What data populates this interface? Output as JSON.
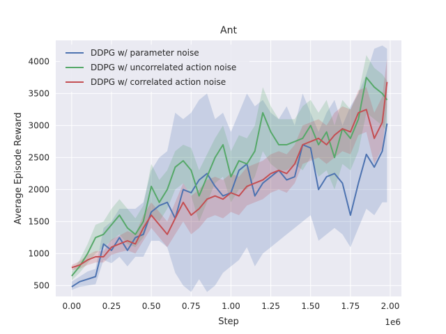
{
  "chart_data": {
    "type": "line",
    "title": "Ant",
    "xlabel": "Step",
    "ylabel": "Average Episode Reward",
    "x_offset_label": "1e6",
    "xlim": [
      -0.1,
      2.07
    ],
    "ylim": [
      330,
      4330
    ],
    "xticks": [
      0.0,
      0.25,
      0.5,
      0.75,
      1.0,
      1.25,
      1.5,
      1.75,
      2.0
    ],
    "xtick_labels": [
      "0.00",
      "0.25",
      "0.50",
      "0.75",
      "1.00",
      "1.25",
      "1.50",
      "1.75",
      "2.00"
    ],
    "yticks": [
      500,
      1000,
      1500,
      2000,
      2500,
      3000,
      3500,
      4000
    ],
    "ytick_labels": [
      "500",
      "1000",
      "1500",
      "2000",
      "2500",
      "3000",
      "3500",
      "4000"
    ],
    "grid": true,
    "legend_position": "top-left",
    "background": "#eaeaf2",
    "series": [
      {
        "name": "DDPG w/ parameter noise",
        "color": "#4c72b0",
        "x": [
          0.0,
          0.05,
          0.1,
          0.15,
          0.2,
          0.25,
          0.3,
          0.35,
          0.4,
          0.45,
          0.5,
          0.55,
          0.6,
          0.65,
          0.7,
          0.75,
          0.8,
          0.85,
          0.9,
          0.95,
          1.0,
          1.05,
          1.1,
          1.15,
          1.2,
          1.25,
          1.3,
          1.35,
          1.4,
          1.45,
          1.5,
          1.55,
          1.6,
          1.65,
          1.7,
          1.75,
          1.8,
          1.85,
          1.9,
          1.95,
          1.98
        ],
        "y": [
          480,
          560,
          600,
          640,
          1150,
          1050,
          1250,
          1050,
          1250,
          1300,
          1650,
          1750,
          1800,
          1550,
          2000,
          1950,
          2150,
          2250,
          2050,
          1900,
          1950,
          2300,
          2400,
          1900,
          2100,
          2200,
          2300,
          2150,
          2200,
          2700,
          2650,
          2000,
          2200,
          2250,
          2100,
          1600,
          2100,
          2550,
          2350,
          2600,
          3030
        ],
        "lower": [
          430,
          480,
          500,
          520,
          900,
          850,
          950,
          800,
          950,
          950,
          1200,
          1200,
          1100,
          700,
          500,
          400,
          600,
          400,
          500,
          700,
          800,
          900,
          1100,
          800,
          1000,
          1100,
          1200,
          1300,
          1400,
          1500,
          1600,
          1200,
          1300,
          1400,
          1300,
          1100,
          1400,
          1700,
          1600,
          1800,
          1800
        ],
        "upper": [
          560,
          640,
          720,
          760,
          1400,
          1500,
          1700,
          1700,
          1700,
          1800,
          2300,
          2500,
          2600,
          3200,
          3100,
          3200,
          3400,
          3500,
          3100,
          3200,
          2900,
          3200,
          3500,
          3300,
          3400,
          3200,
          3100,
          3300,
          3000,
          3500,
          3200,
          2900,
          3200,
          3400,
          3000,
          3300,
          3500,
          3800,
          4200,
          4250,
          4200
        ]
      },
      {
        "name": "DDPG w/ uncorrelated action noise",
        "color": "#55a868",
        "x": [
          0.0,
          0.05,
          0.1,
          0.15,
          0.2,
          0.25,
          0.3,
          0.35,
          0.4,
          0.45,
          0.5,
          0.55,
          0.6,
          0.65,
          0.7,
          0.75,
          0.8,
          0.85,
          0.9,
          0.95,
          1.0,
          1.05,
          1.1,
          1.15,
          1.2,
          1.25,
          1.3,
          1.35,
          1.4,
          1.45,
          1.5,
          1.55,
          1.6,
          1.65,
          1.7,
          1.75,
          1.8,
          1.85,
          1.9,
          1.95,
          1.98
        ],
        "y": [
          650,
          800,
          1000,
          1250,
          1300,
          1450,
          1600,
          1400,
          1300,
          1500,
          2050,
          1800,
          2000,
          2350,
          2450,
          2300,
          1900,
          2200,
          2500,
          2700,
          2200,
          2450,
          2400,
          2600,
          3200,
          2900,
          2700,
          2700,
          2750,
          2800,
          3000,
          2700,
          2900,
          2500,
          2950,
          2800,
          3100,
          3750,
          3600,
          3500,
          3400
        ],
        "lower": [
          580,
          700,
          850,
          1000,
          1100,
          1200,
          1300,
          1150,
          1100,
          1250,
          1600,
          1500,
          1700,
          2000,
          2100,
          1900,
          1500,
          1800,
          2100,
          2200,
          1800,
          2000,
          2000,
          2200,
          2600,
          2400,
          2300,
          2300,
          2400,
          2300,
          2500,
          2200,
          2300,
          2000,
          2400,
          2300,
          2600,
          3200,
          3100,
          3000,
          2900
        ],
        "upper": [
          720,
          900,
          1150,
          1450,
          1500,
          1700,
          1850,
          1700,
          1550,
          1750,
          2400,
          2150,
          2300,
          2600,
          2700,
          2650,
          2300,
          2550,
          2800,
          3000,
          2600,
          2850,
          2800,
          3000,
          3600,
          3300,
          3100,
          3100,
          3100,
          3300,
          3400,
          3200,
          3400,
          3000,
          3400,
          3250,
          3500,
          4100,
          3900,
          3800,
          3700
        ]
      },
      {
        "name": "DDPG w/ correlated action noise",
        "color": "#c44e52",
        "x": [
          0.0,
          0.05,
          0.1,
          0.15,
          0.2,
          0.25,
          0.3,
          0.35,
          0.4,
          0.45,
          0.5,
          0.55,
          0.6,
          0.65,
          0.7,
          0.75,
          0.8,
          0.85,
          0.9,
          0.95,
          1.0,
          1.05,
          1.1,
          1.15,
          1.2,
          1.25,
          1.3,
          1.35,
          1.4,
          1.45,
          1.5,
          1.55,
          1.6,
          1.65,
          1.7,
          1.75,
          1.8,
          1.85,
          1.9,
          1.95,
          1.98
        ],
        "y": [
          780,
          820,
          900,
          950,
          950,
          1100,
          1150,
          1200,
          1150,
          1400,
          1600,
          1450,
          1300,
          1550,
          1800,
          1600,
          1700,
          1850,
          1900,
          1850,
          1950,
          1900,
          2050,
          2100,
          2150,
          2250,
          2300,
          2250,
          2400,
          2700,
          2750,
          2800,
          2700,
          2850,
          2950,
          2900,
          3200,
          3250,
          2800,
          3050,
          3680
        ],
        "lower": [
          740,
          760,
          820,
          860,
          860,
          980,
          1020,
          1050,
          1000,
          1200,
          1400,
          1250,
          1100,
          1300,
          1500,
          1300,
          1400,
          1550,
          1600,
          1550,
          1650,
          1600,
          1750,
          1800,
          1850,
          1950,
          2000,
          1950,
          2100,
          2400,
          2450,
          2500,
          2400,
          2500,
          2600,
          2550,
          2850,
          2900,
          2400,
          2650,
          3300
        ],
        "upper": [
          820,
          880,
          980,
          1040,
          1040,
          1220,
          1280,
          1350,
          1300,
          1600,
          1800,
          1650,
          1500,
          1800,
          2100,
          1900,
          2000,
          2150,
          2200,
          2150,
          2250,
          2200,
          2350,
          2400,
          2450,
          2550,
          2600,
          2550,
          2700,
          3000,
          3050,
          3100,
          3000,
          3200,
          3300,
          3250,
          3550,
          3600,
          3200,
          3450,
          4050
        ]
      }
    ]
  }
}
